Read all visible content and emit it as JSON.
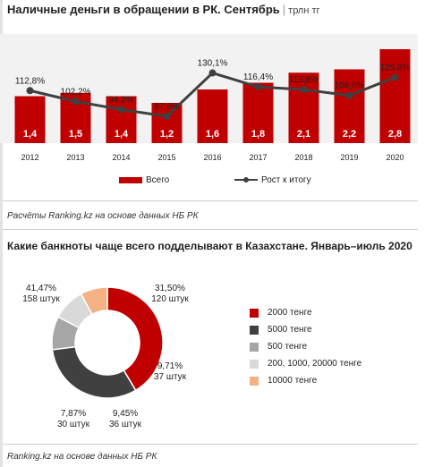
{
  "top_title": "Наличные деньги в обращении в РК. Сентябрь",
  "top_unit": "трлн тг",
  "legend": {
    "total": "Всего",
    "growth": "Рост к итогу"
  },
  "source1": "Расчёты Ranking.kz на основе данных НБ РК",
  "bottom_title": "Какие банкноты чаще всего подделывают в Казахстане. Январь–июль 2020",
  "source2": "Ranking.kz на основе данных НБ РК",
  "colors": {
    "bar": "#c00000",
    "line": "#404040",
    "bg": "#f2f2f2"
  },
  "chart_data": [
    {
      "type": "bar",
      "categories": [
        "2012",
        "2013",
        "2014",
        "2015",
        "2016",
        "2017",
        "2018",
        "2019",
        "2020"
      ],
      "series": [
        {
          "name": "Всего",
          "values": [
            1.4,
            1.5,
            1.4,
            1.2,
            1.6,
            1.8,
            2.1,
            2.2,
            2.8
          ],
          "labels": [
            "1,4",
            "1,5",
            "1,4",
            "1,2",
            "1,6",
            "1,8",
            "2,1",
            "2,2",
            "2,8"
          ]
        },
        {
          "name": "Рост к итогу",
          "type": "line",
          "values": [
            112.8,
            102.2,
            94.2,
            87.6,
            130.1,
            116.4,
            113.8,
            108.0,
            125.8
          ],
          "labels": [
            "112,8%",
            "102,2%",
            "94,2%",
            "87,6%",
            "130,1%",
            "116,4%",
            "113,8%",
            "108,0%",
            "125,8%"
          ]
        }
      ],
      "title": "Наличные деньги в обращении в РК. Сентябрь",
      "unit": "трлн тг",
      "legend_position": "bottom"
    },
    {
      "type": "pie",
      "title": "Какие банкноты чаще всего подделывают в Казахстане. Январь–июль 2020",
      "slices": [
        {
          "name": "2000 тенге",
          "value": 41.47,
          "pct": "41,47%",
          "count": "158 штук",
          "color": "#c00000"
        },
        {
          "name": "5000 тенге",
          "value": 31.5,
          "pct": "31,50%",
          "count": "120 штук",
          "color": "#404040"
        },
        {
          "name": "500 тенге",
          "value": 9.71,
          "pct": "9,71%",
          "count": "37 штук",
          "color": "#a6a6a6"
        },
        {
          "name": "200, 1000, 20000 тенге",
          "value": 9.45,
          "pct": "9,45%",
          "count": "36 штук",
          "color": "#d9d9d9"
        },
        {
          "name": "10000 тенге",
          "value": 7.87,
          "pct": "7,87%",
          "count": "30 штук",
          "color": "#f4b183"
        }
      ],
      "legend_position": "right"
    }
  ]
}
